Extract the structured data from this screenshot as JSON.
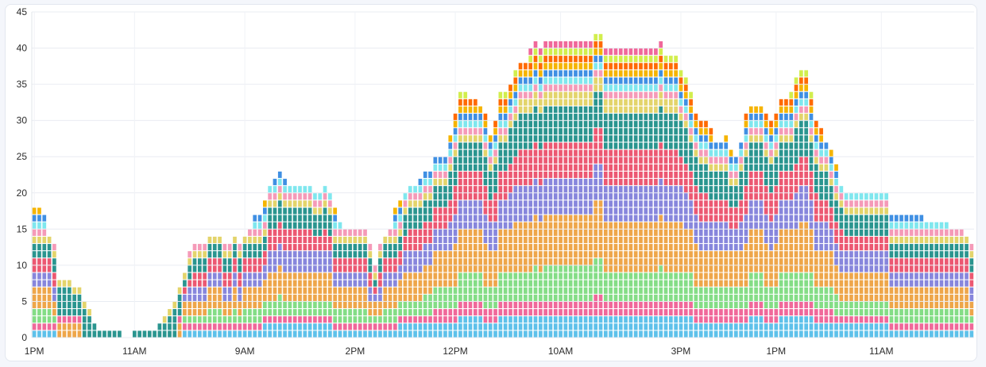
{
  "chart_data": {
    "type": "bar",
    "stacked": true,
    "title": "",
    "xlabel": "",
    "ylabel": "",
    "ylim": [
      0,
      45
    ],
    "yticks": [
      0,
      5,
      10,
      15,
      20,
      25,
      30,
      35,
      40,
      45
    ],
    "grid": true,
    "legend": "none",
    "x_tick_labels": [
      {
        "label": "1PM",
        "bar_index": 0
      },
      {
        "label": "11AM",
        "bar_index": 20
      },
      {
        "label": "9AM",
        "bar_index": 42
      },
      {
        "label": "2PM",
        "bar_index": 64
      },
      {
        "label": "12PM",
        "bar_index": 84
      },
      {
        "label": "10AM",
        "bar_index": 105
      },
      {
        "label": "3PM",
        "bar_index": 129
      },
      {
        "label": "1PM",
        "bar_index": 148
      },
      {
        "label": "11AM",
        "bar_index": 169
      }
    ],
    "colors": {
      "blue": "#5ec1ea",
      "pink": "#f0689a",
      "green": "#84dd86",
      "orange": "#eea64a",
      "purple": "#8786dc",
      "red": "#ec5872",
      "teal": "#2a958f",
      "khaki": "#e3d46b",
      "lightpink": "#f59ab8",
      "cyan": "#7fe7ee",
      "lime": "#d2ee4d",
      "darkblue": "#3f8fe3",
      "amber": "#f5b400",
      "flame": "#ff6a00",
      "yellow": "#f8ef3a"
    },
    "totals": [
      18,
      18,
      17,
      14,
      13,
      8,
      8,
      8,
      7,
      7,
      5,
      4,
      2,
      1,
      1,
      1,
      1,
      1,
      0,
      0,
      1,
      1,
      1,
      1,
      1,
      2,
      3,
      4,
      5,
      7,
      9,
      12,
      13,
      13,
      13,
      14,
      14,
      14,
      13,
      13,
      14,
      13,
      14,
      15,
      17,
      17,
      19,
      21,
      22,
      23,
      22,
      21,
      21,
      21,
      21,
      21,
      20,
      20,
      21,
      20,
      18,
      16,
      15,
      15,
      15,
      15,
      15,
      13,
      10,
      13,
      14,
      15,
      18,
      19,
      20,
      21,
      21,
      22,
      23,
      23,
      25,
      25,
      25,
      28,
      31,
      34,
      34,
      33,
      33,
      32,
      31,
      28,
      30,
      34,
      34,
      35,
      37,
      38,
      38,
      40,
      41,
      40,
      41,
      41,
      41,
      41,
      41,
      41,
      41,
      41,
      41,
      41,
      42,
      42,
      40,
      40,
      40,
      40,
      40,
      40,
      40,
      40,
      40,
      40,
      40,
      41,
      39,
      39,
      39,
      37,
      36,
      34,
      31,
      30,
      30,
      29,
      27,
      27,
      28,
      26,
      25,
      27,
      31,
      32,
      32,
      32,
      31,
      30,
      31,
      33,
      33,
      34,
      36,
      37,
      37,
      34,
      30,
      29,
      27,
      26,
      24,
      21,
      20,
      20,
      20,
      20,
      20,
      20,
      20,
      20,
      20,
      17,
      17,
      17,
      17,
      17,
      17,
      17,
      16,
      16,
      16,
      16,
      16,
      15,
      15,
      15,
      14,
      13
    ]
  }
}
